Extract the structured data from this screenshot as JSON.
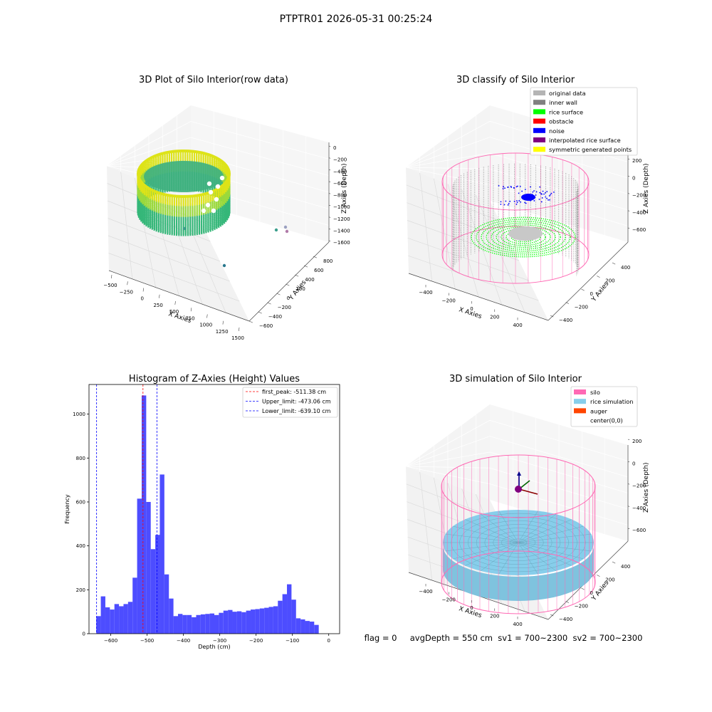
{
  "figure": {
    "suptitle": "PTPTR01 2026-05-31 00:25:24",
    "status_line": "flag = 0     avgDepth = 550 cm  sv1 = 700~2300  sv2 = 700~2300"
  },
  "colors": {
    "hist_bar": "#4d4dff",
    "first_peak_line": "#ff0000",
    "limit_line": "#0000ff",
    "viridis_low": "#3b9e8c",
    "viridis_mid": "#35b779",
    "viridis_high": "#dde318",
    "silo": "#ff69b4",
    "rice_sim": "#87ceeb",
    "auger": "#ff4500",
    "inner_wall": "#808080",
    "rice_surface": "#00ff00",
    "noise": "#0000ff",
    "pane": "#ebebeb"
  },
  "chart_data": [
    {
      "type": "scatter3d",
      "title": "3D Plot of Silo Interior(row data)",
      "xlabel": "X Axies",
      "ylabel": "Y Axies",
      "zlabel": "Z Axies (Depth)",
      "x_ticks": [
        "−500",
        "−250",
        "0",
        "250",
        "500",
        "750",
        "1000",
        "1250",
        "1500"
      ],
      "y_ticks": [
        "−600",
        "−400",
        "−200",
        "0",
        "200",
        "400",
        "600",
        "800"
      ],
      "z_ticks": [
        "−1600",
        "−1400",
        "−1200",
        "−1000",
        "−800",
        "−600",
        "−400",
        "−200",
        "0"
      ],
      "xlim": [
        -550,
        1550
      ],
      "ylim": [
        -650,
        850
      ],
      "zlim": [
        -1650,
        50
      ],
      "colormap": "viridis",
      "outlier_points": [
        {
          "x": 1500,
          "y": -450,
          "z": -1000
        },
        {
          "x": 1550,
          "y": -480,
          "z": -950
        },
        {
          "x": 1520,
          "y": -500,
          "z": -900
        },
        {
          "x": 1200,
          "y": 300,
          "z": -1300
        },
        {
          "x": -150,
          "y": 100,
          "z": -500
        }
      ]
    },
    {
      "type": "scatter3d",
      "title": "3D classify of Silo Interior",
      "xlabel": "X Axies",
      "ylabel": "Y Axies",
      "zlabel": "Z Axies (Depth)",
      "x_ticks": [
        "−400",
        "−200",
        "0",
        "200",
        "400"
      ],
      "y_ticks": [
        "−400",
        "−200",
        "0",
        "200",
        "400"
      ],
      "z_ticks": [
        "−600",
        "−400",
        "−200",
        "0",
        "200"
      ],
      "legend": [
        {
          "label": "original data",
          "color": "#b4b4b4"
        },
        {
          "label": "inner wall",
          "color": "#808080"
        },
        {
          "label": "rice surface",
          "color": "#00ff00"
        },
        {
          "label": "obstacle",
          "color": "#ff0000"
        },
        {
          "label": "noise",
          "color": "#0000ff"
        },
        {
          "label": "interpolated rice surface",
          "color": "#800080"
        },
        {
          "label": "symmetric generated points",
          "color": "#ffff00"
        }
      ]
    },
    {
      "type": "bar",
      "title": "Histogram of Z-Axies (Height) Values",
      "xlabel": "Depth (cm)",
      "ylabel": "Frequency",
      "xlim": [
        -660,
        30
      ],
      "ylim": [
        0,
        1135
      ],
      "x_ticks": [
        -600,
        -500,
        -400,
        -300,
        -200,
        -100,
        0
      ],
      "y_ticks": [
        0,
        200,
        400,
        600,
        800,
        1000
      ],
      "bin_start": -640,
      "bin_width": 12.5,
      "values": [
        80,
        170,
        120,
        110,
        135,
        125,
        135,
        145,
        255,
        615,
        1085,
        600,
        385,
        450,
        725,
        270,
        160,
        80,
        90,
        85,
        85,
        75,
        85,
        88,
        90,
        92,
        85,
        95,
        105,
        108,
        100,
        102,
        98,
        105,
        110,
        112,
        115,
        118,
        122,
        125,
        150,
        180,
        225,
        155,
        70,
        65,
        58,
        55,
        40
      ],
      "vlines": [
        {
          "value": -511.38,
          "label": "first_peak: -511.38 cm",
          "color": "#ff0000"
        },
        {
          "value": -473.06,
          "label": "Upper_limit: -473.06 cm",
          "color": "#0000ff"
        },
        {
          "value": -639.1,
          "label": "Lower_limit: -639.10 cm",
          "color": "#0000ff"
        }
      ]
    },
    {
      "type": "surface3d",
      "title": "3D simulation of Silo Interior",
      "xlabel": "X Axies",
      "ylabel": "Y Axies",
      "zlabel": "Z Axies (Depth)",
      "x_ticks": [
        "−400",
        "−200",
        "0",
        "200",
        "400"
      ],
      "y_ticks": [
        "−400",
        "−200",
        "0",
        "200",
        "400"
      ],
      "z_ticks": [
        "−600",
        "−400",
        "−200",
        "0",
        "200"
      ],
      "legend": [
        {
          "label": "silo",
          "color": "#ff69b4"
        },
        {
          "label": "rice simulation",
          "color": "#87ceeb"
        },
        {
          "label": "auger",
          "color": "#ff4500"
        },
        {
          "label": "center(0,0)",
          "color": "#ffffff"
        }
      ]
    }
  ]
}
